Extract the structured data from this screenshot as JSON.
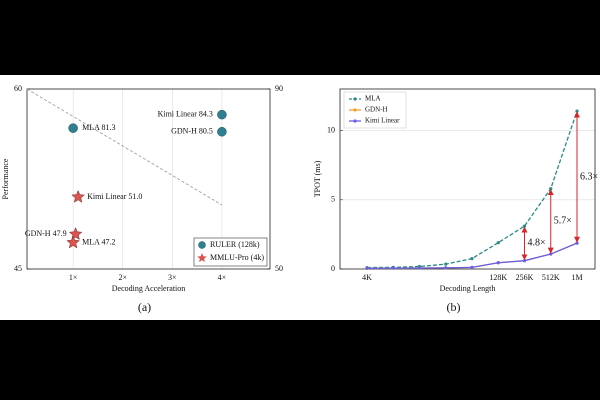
{
  "chart_data": [
    {
      "type": "scatter",
      "caption": "(a)",
      "xlabel": "Decoding Acceleration",
      "ylabel": "Performance",
      "xlim": [
        0.07,
        4.97
      ],
      "xticks": [
        {
          "value": 1,
          "label": "1×"
        },
        {
          "value": 2,
          "label": "2×"
        },
        {
          "value": 3,
          "label": "3×"
        },
        {
          "value": 4,
          "label": "4×"
        }
      ],
      "ylim": [
        45,
        60
      ],
      "yticks": [
        45,
        60
      ],
      "y2lim": [
        50,
        90
      ],
      "y2ticks": [
        50,
        90
      ],
      "grid": true,
      "legend": "lower right",
      "series": [
        {
          "name": "RULER (128k)",
          "color": "#2e7f8f",
          "marker": "circle",
          "axis": "y2",
          "x": [
            1.0,
            4.0,
            4.0
          ],
          "values": [
            81.3,
            84.3,
            80.5
          ],
          "value_labels": [
            "MLA 81.3",
            "Kimi Linear 84.3",
            "GDN-H 80.5"
          ]
        },
        {
          "name": "MMLU-Pro (4k)",
          "color": "#d9534f",
          "marker": "star",
          "x": [
            1.1,
            1.05,
            1.0
          ],
          "values": [
            51.0,
            47.9,
            47.2
          ],
          "value_labels": [
            "Kimi Linear 51.0",
            "GDN-H 47.9",
            "MLA 47.2"
          ]
        }
      ]
    },
    {
      "type": "line",
      "caption": "(b)",
      "xlabel": "Decoding Length",
      "ylabel": "TPOT (ms)",
      "categories": [
        "4K",
        null,
        null,
        null,
        null,
        "128K",
        "256K",
        "512K",
        "1M"
      ],
      "ylim": [
        0,
        13
      ],
      "yticks": [
        0,
        5,
        10
      ],
      "grid": true,
      "legend": "upper left",
      "series": [
        {
          "name": "MLA",
          "color": "#2a8a84",
          "dash": true,
          "values": [
            0.1,
            0.12,
            0.18,
            0.35,
            0.75,
            1.9,
            3.1,
            5.8,
            11.4
          ]
        },
        {
          "name": "GDN-H",
          "color": "#f0a030",
          "values": [
            0.05,
            0.06,
            0.07,
            0.08,
            0.12,
            0.45,
            0.6,
            1.08,
            1.87
          ]
        },
        {
          "name": "Kimi Linear",
          "color": "#6a5ee8",
          "values": [
            0.05,
            0.06,
            0.07,
            0.08,
            0.12,
            0.45,
            0.6,
            1.08,
            1.87
          ]
        }
      ],
      "annotations": [
        "4.8×",
        "5.7×",
        "6.3×"
      ]
    }
  ]
}
